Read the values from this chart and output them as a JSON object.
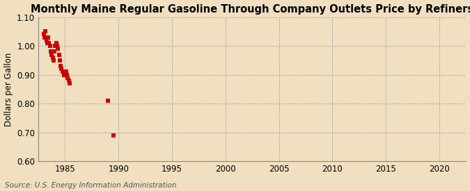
{
  "title": "Monthly Maine Regular Gasoline Through Company Outlets Price by Refiners",
  "ylabel": "Dollars per Gallon",
  "source": "Source: U.S. Energy Information Administration",
  "background_color": "#f0dfc0",
  "plot_background_color": "#f0dfc0",
  "xlim": [
    1982.5,
    2022.5
  ],
  "ylim": [
    0.6,
    1.1
  ],
  "xticks": [
    1985,
    1990,
    1995,
    2000,
    2005,
    2010,
    2015,
    2020
  ],
  "yticks": [
    0.6,
    0.7,
    0.8,
    0.9,
    1.0,
    1.1
  ],
  "data_x": [
    1983.0,
    1983.08,
    1983.17,
    1983.25,
    1983.33,
    1983.42,
    1983.5,
    1983.58,
    1983.67,
    1983.75,
    1983.83,
    1983.92,
    1984.0,
    1984.08,
    1984.17,
    1984.25,
    1984.33,
    1984.42,
    1984.5,
    1984.58,
    1984.67,
    1984.75,
    1984.83,
    1984.92,
    1985.0,
    1985.08,
    1985.17,
    1985.25,
    1985.33,
    1985.42,
    1989.0,
    1989.5
  ],
  "data_y": [
    1.04,
    1.03,
    1.05,
    1.02,
    1.01,
    1.03,
    1.01,
    1.0,
    0.98,
    0.97,
    0.96,
    0.95,
    0.98,
    1.0,
    1.01,
    1.0,
    0.99,
    0.97,
    0.95,
    0.93,
    0.92,
    0.91,
    0.91,
    0.9,
    0.91,
    0.91,
    0.9,
    0.89,
    0.88,
    0.87,
    0.81,
    0.69
  ],
  "marker_color": "#cc0000",
  "marker_size": 4.0,
  "grid_color": "#aaaaaa",
  "grid_linestyle": "--",
  "title_fontsize": 10.5,
  "label_fontsize": 8.5,
  "tick_fontsize": 8.5,
  "source_fontsize": 7.5
}
